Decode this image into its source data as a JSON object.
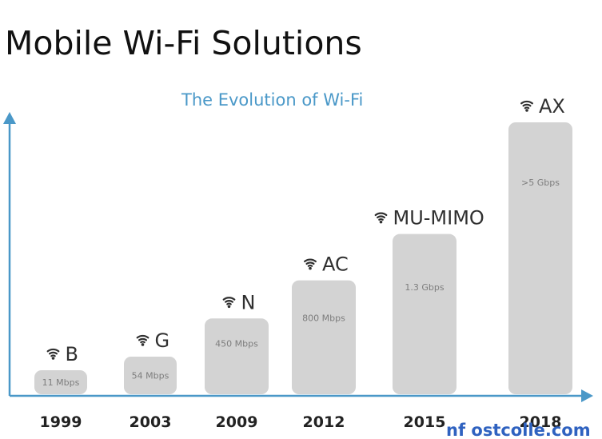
{
  "page": {
    "title": "Mobile Wi-Fi Solutions",
    "watermark": "nf ostcolle.com"
  },
  "chart_data": {
    "type": "bar",
    "title": "The Evolution of Wi-Fi",
    "xlabel": "",
    "ylabel": "",
    "categories": [
      "B",
      "G",
      "N",
      "AC",
      "MU-MIMO",
      "AX"
    ],
    "years": [
      "1999",
      "2003",
      "2009",
      "2012",
      "2015",
      "2018"
    ],
    "value_labels": [
      "11 Mbps",
      "54 Mbps",
      "450 Mbps",
      "800 Mbps",
      "1.3 Gbps",
      ">5 Gbps"
    ],
    "relative_heights": [
      0.09,
      0.14,
      0.28,
      0.42,
      0.59,
      1.0
    ],
    "grid": false,
    "legend": "none",
    "colors": {
      "bar": "#d3d3d3",
      "axis": "#4a98c8",
      "subtitle": "#4a98c8"
    },
    "icon": "wifi-icon"
  }
}
